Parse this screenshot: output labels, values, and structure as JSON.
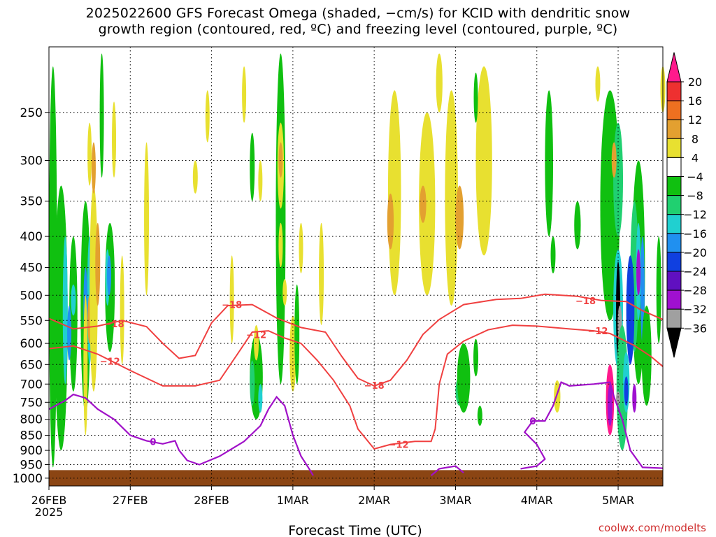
{
  "chart_data": {
    "type": "heatmap",
    "title_line1": "2025022600 GFS Forecast Omega (shaded, −cm/s) for KCID with dendritic snow",
    "title_line2": "growth region (contoured, red, ºC) and freezing level (contoured, purple, ºC)",
    "xlabel": "Forecast Time (UTC)",
    "ylabel": "",
    "credit": "coolwx.com/modelts",
    "x_ticks": [
      "26FEB",
      "27FEB",
      "28FEB",
      "1MAR",
      "2MAR",
      "3MAR",
      "4MAR",
      "5MAR"
    ],
    "x_year": "2025",
    "x_range_days": [
      0,
      7.55
    ],
    "y_ticks": [
      250,
      300,
      350,
      400,
      450,
      500,
      550,
      600,
      650,
      700,
      750,
      800,
      850,
      900,
      950,
      1000
    ],
    "y_range_hPa": [
      195,
      1030
    ],
    "y_scale": "log",
    "grid": true,
    "surface_level_hPa": 970,
    "colorbar": {
      "labels": [
        "20",
        "16",
        "12",
        "8",
        "4",
        "−4",
        "−8",
        "−12",
        "−16",
        "−20",
        "−24",
        "−28",
        "−32",
        "−36"
      ],
      "colors": [
        "#ff1a8c",
        "#ee3030",
        "#ee7020",
        "#e3a030",
        "#e8e030",
        "#ffffff",
        "#10c010",
        "#20d070",
        "#20d0d0",
        "#2090f0",
        "#1040e0",
        "#6010c0",
        "#a010d0",
        "#a0a0a0",
        "#000000"
      ]
    },
    "contours": [
      {
        "label": "−18",
        "color": "#f04040",
        "points": [
          [
            0,
            546
          ],
          [
            0.3,
            568
          ],
          [
            0.6,
            562
          ],
          [
            0.9,
            550
          ],
          [
            1.2,
            563
          ],
          [
            1.4,
            600
          ],
          [
            1.6,
            635
          ],
          [
            1.8,
            628
          ],
          [
            2,
            555
          ],
          [
            2.2,
            520
          ],
          [
            2.5,
            518
          ],
          [
            2.8,
            545
          ],
          [
            3.1,
            565
          ],
          [
            3.4,
            575
          ],
          [
            3.6,
            630
          ],
          [
            3.8,
            685
          ],
          [
            4.0,
            705
          ],
          [
            4.2,
            690
          ],
          [
            4.4,
            640
          ],
          [
            4.6,
            580
          ],
          [
            4.8,
            548
          ],
          [
            5.1,
            518
          ],
          [
            5.5,
            508
          ],
          [
            5.8,
            506
          ],
          [
            6.1,
            498
          ],
          [
            6.5,
            502
          ],
          [
            6.8,
            510
          ],
          [
            7.1,
            512
          ],
          [
            7.3,
            530
          ],
          [
            7.55,
            548
          ]
        ]
      },
      {
        "label": "−12",
        "color": "#f04040",
        "points": [
          [
            0,
            612
          ],
          [
            0.3,
            606
          ],
          [
            0.6,
            625
          ],
          [
            1.0,
            665
          ],
          [
            1.4,
            705
          ],
          [
            1.8,
            705
          ],
          [
            2.1,
            690
          ],
          [
            2.3,
            630
          ],
          [
            2.5,
            575
          ],
          [
            2.7,
            572
          ],
          [
            2.9,
            588
          ],
          [
            3.1,
            600
          ],
          [
            3.3,
            640
          ],
          [
            3.5,
            690
          ],
          [
            3.7,
            760
          ],
          [
            3.8,
            830
          ],
          [
            4.0,
            895
          ],
          [
            4.2,
            880
          ],
          [
            4.5,
            870
          ],
          [
            4.7,
            870
          ],
          [
            4.75,
            830
          ],
          [
            4.8,
            700
          ],
          [
            4.9,
            625
          ],
          [
            5.1,
            595
          ],
          [
            5.4,
            570
          ],
          [
            5.7,
            560
          ],
          [
            6.0,
            562
          ],
          [
            6.4,
            568
          ],
          [
            6.7,
            572
          ],
          [
            6.9,
            578
          ],
          [
            7.2,
            605
          ],
          [
            7.4,
            630
          ],
          [
            7.55,
            655
          ]
        ]
      }
    ],
    "freezing_level": {
      "label": "0",
      "color": "#a010c8",
      "segments": [
        [
          [
            0,
            770
          ],
          [
            0.2,
            745
          ],
          [
            0.3,
            728
          ],
          [
            0.45,
            738
          ],
          [
            0.6,
            770
          ],
          [
            0.8,
            800
          ],
          [
            1.0,
            850
          ],
          [
            1.2,
            868
          ],
          [
            1.4,
            878
          ],
          [
            1.55,
            868
          ],
          [
            1.6,
            900
          ],
          [
            1.7,
            935
          ],
          [
            1.85,
            950
          ],
          [
            2.1,
            920
          ],
          [
            2.4,
            870
          ],
          [
            2.6,
            820
          ],
          [
            2.7,
            770
          ],
          [
            2.8,
            735
          ],
          [
            2.9,
            760
          ],
          [
            3.0,
            850
          ],
          [
            3.1,
            920
          ],
          [
            3.2,
            965
          ],
          [
            3.25,
            990
          ]
        ],
        [
          [
            4.7,
            990
          ],
          [
            4.8,
            965
          ],
          [
            5.0,
            955
          ],
          [
            5.1,
            980
          ]
        ],
        [
          [
            5.8,
            965
          ],
          [
            6.0,
            955
          ],
          [
            6.1,
            930
          ],
          [
            6.0,
            880
          ],
          [
            5.85,
            840
          ],
          [
            5.95,
            805
          ],
          [
            6.1,
            805
          ],
          [
            6.2,
            760
          ],
          [
            6.3,
            695
          ],
          [
            6.4,
            705
          ],
          [
            6.7,
            700
          ],
          [
            6.9,
            695
          ],
          [
            6.95,
            735
          ],
          [
            7.05,
            800
          ],
          [
            7.15,
            900
          ],
          [
            7.3,
            960
          ],
          [
            7.55,
            963
          ]
        ]
      ]
    }
  }
}
